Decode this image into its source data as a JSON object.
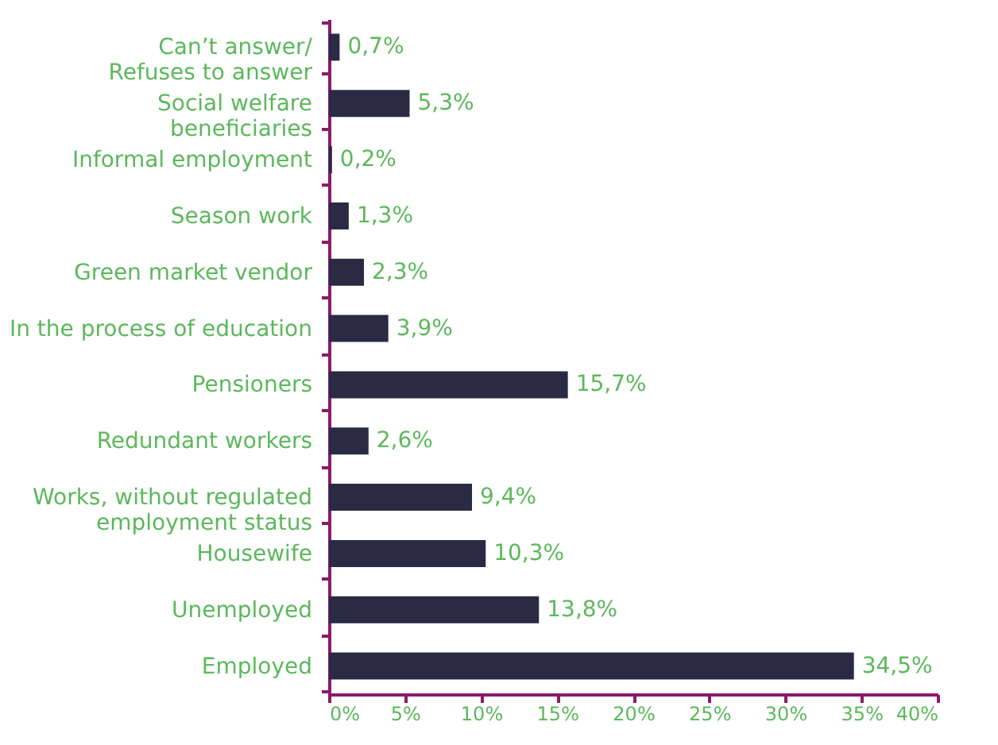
{
  "chart_data": {
    "type": "bar",
    "orientation": "horizontal",
    "categories": [
      "Can’t answer/\nRefuses to answer",
      "Social welfare\nbeneficiaries",
      "Informal employment",
      "Season work",
      "Green market vendor",
      "In the process of education",
      "Pensioners",
      "Redundant workers",
      "Works, without regulated\nemployment status",
      "Housewife",
      "Unemployed",
      "Employed"
    ],
    "values": [
      0.7,
      5.3,
      0.2,
      1.3,
      2.3,
      3.9,
      15.7,
      2.6,
      9.4,
      10.3,
      13.8,
      34.5
    ],
    "value_labels": [
      "0,7%",
      "5,3%",
      "0,2%",
      "1,3%",
      "2,3%",
      "3,9%",
      "15,7%",
      "2,6%",
      "9,4%",
      "10,3%",
      "13,8%",
      "34,5%"
    ],
    "color": "#2b2a45",
    "xlim": [
      0,
      40
    ],
    "xticks": [
      {
        "value": 0,
        "label": "0%"
      },
      {
        "value": 5,
        "label": "5%"
      },
      {
        "value": 10,
        "label": "10%"
      },
      {
        "value": 15,
        "label": "15%"
      },
      {
        "value": 20,
        "label": "20%"
      },
      {
        "value": 25,
        "label": "25%"
      },
      {
        "value": 30,
        "label": "30%"
      },
      {
        "value": 35,
        "label": "35%"
      },
      {
        "value": 40,
        "label": "40%"
      }
    ],
    "grid": false
  }
}
